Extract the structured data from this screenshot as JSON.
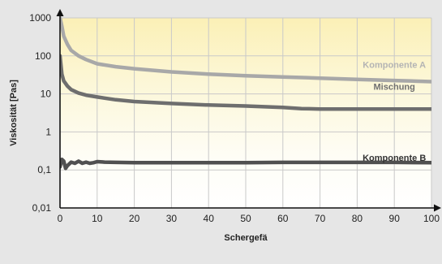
{
  "chart_data": {
    "type": "line",
    "xlabel": "Schergefä",
    "ylabel": "Viskosität [Pas]",
    "xlim": [
      0,
      100
    ],
    "ylim": [
      0.01,
      1000
    ],
    "yscale": "log",
    "x_ticks": [
      "0",
      "10",
      "20",
      "30",
      "40",
      "50",
      "60",
      "70",
      "80",
      "90",
      "100"
    ],
    "y_ticks": [
      {
        "value": 0.01,
        "label": "0,01"
      },
      {
        "value": 0.1,
        "label": "0,1"
      },
      {
        "value": 1,
        "label": "1"
      },
      {
        "value": 10,
        "label": "10"
      },
      {
        "value": 100,
        "label": "100"
      },
      {
        "value": 1000,
        "label": "1000"
      }
    ],
    "grid": true,
    "series": [
      {
        "name": "Komponente A",
        "color": "#a8a8a8",
        "label_color": "#b4b4b4",
        "x": [
          0,
          0.5,
          1,
          2,
          3,
          5,
          7,
          10,
          15,
          20,
          30,
          40,
          50,
          60,
          70,
          80,
          90,
          100
        ],
        "y": [
          1000,
          600,
          330,
          200,
          140,
          100,
          80,
          62,
          52,
          46,
          38,
          33,
          30,
          28,
          26,
          24,
          22.5,
          21
        ]
      },
      {
        "name": "Mischung",
        "color": "#6e6e6e",
        "label_color": "#707070",
        "x": [
          0,
          0.5,
          1,
          2,
          3,
          5,
          7,
          10,
          15,
          20,
          30,
          40,
          50,
          60,
          65,
          70,
          80,
          90,
          100
        ],
        "y": [
          100,
          33,
          22,
          16,
          13,
          10.5,
          9.3,
          8.3,
          7.0,
          6.3,
          5.6,
          5.1,
          4.8,
          4.4,
          4.1,
          4.0,
          4.0,
          4.0,
          4.0
        ]
      },
      {
        "name": "Komponente B",
        "color": "#505050",
        "label_color": "#333333",
        "x": [
          0,
          0.5,
          1,
          1.5,
          2,
          3,
          4,
          5,
          6,
          7,
          8,
          9,
          10,
          12,
          15,
          20,
          30,
          40,
          50,
          60,
          70,
          80,
          90,
          100
        ],
        "y": [
          0.12,
          0.19,
          0.17,
          0.11,
          0.13,
          0.16,
          0.15,
          0.17,
          0.15,
          0.16,
          0.15,
          0.155,
          0.165,
          0.16,
          0.158,
          0.155,
          0.155,
          0.155,
          0.155,
          0.158,
          0.158,
          0.158,
          0.158,
          0.155
        ]
      }
    ],
    "series_labels": [
      {
        "text": "Komponente A",
        "x": 90,
        "y": 56
      },
      {
        "text": "Mischung",
        "x": 90,
        "y": 15
      },
      {
        "text": "Komponente B",
        "x": 90,
        "y": 0.2
      }
    ]
  }
}
